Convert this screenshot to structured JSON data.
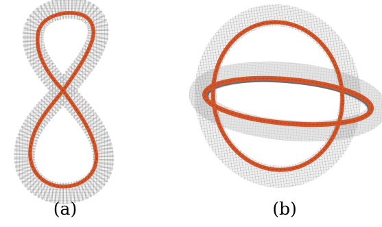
{
  "figure": {
    "panels": [
      {
        "id": "a",
        "caption": "(a)"
      },
      {
        "id": "b",
        "caption": "(b)"
      }
    ]
  },
  "colors": {
    "path": "#d2562a",
    "path_dark": "#8a3216",
    "voxel_grid": "#6e6e6e",
    "voxel_shadow": "#a9a9a9",
    "background": "#ffffff"
  }
}
